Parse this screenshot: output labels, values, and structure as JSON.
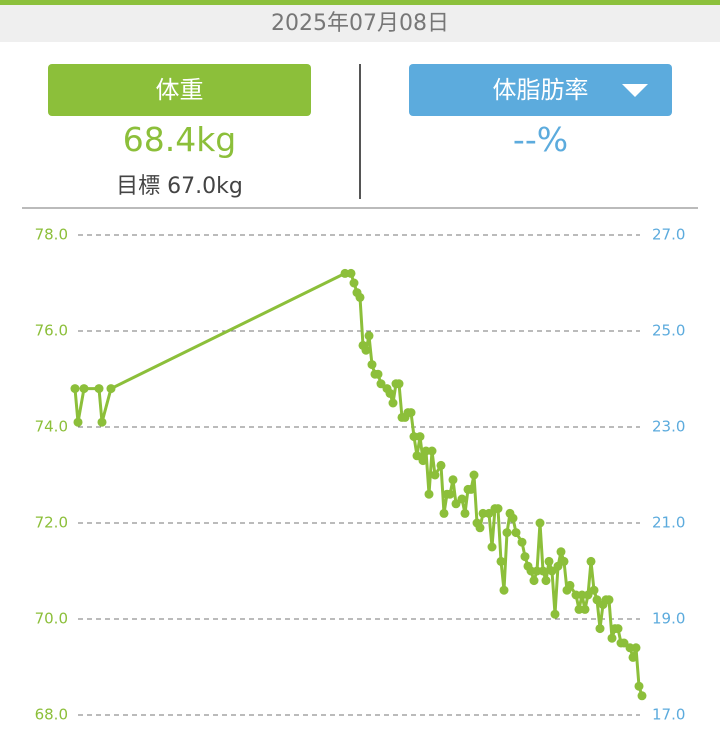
{
  "header": {
    "date": "2025年07月08日"
  },
  "weight_panel": {
    "button": "体重",
    "value": "68.4kg",
    "goal": "目標 67.0kg"
  },
  "fat_panel": {
    "button": "体脂肪率",
    "value": "--%"
  },
  "chart_data": {
    "type": "line",
    "x": [
      0,
      1,
      3,
      8,
      9,
      12,
      90,
      92,
      93,
      94,
      95,
      96,
      97,
      98,
      99,
      100,
      101,
      102,
      104,
      105,
      106,
      107,
      108,
      109,
      110,
      111,
      112,
      113,
      114,
      115,
      116,
      117,
      118,
      119,
      120,
      122,
      123,
      124,
      125,
      126,
      127,
      129,
      130,
      131,
      132,
      133,
      134,
      135,
      136,
      138,
      139,
      140,
      141,
      142,
      143,
      144,
      145,
      146,
      147,
      149,
      150,
      151,
      152,
      153,
      154,
      155,
      156,
      157,
      158,
      159,
      160,
      161,
      162,
      163,
      164,
      165,
      167,
      168,
      169,
      170,
      171,
      172,
      173,
      174,
      175,
      176,
      177,
      178,
      179,
      180,
      181,
      182,
      183,
      185,
      186,
      187,
      188,
      189
    ],
    "series": [
      {
        "name": "体重",
        "color": "#8cbf3a",
        "values": [
          74.8,
          74.1,
          74.8,
          74.8,
          74.1,
          74.8,
          77.2,
          77.2,
          77.0,
          76.8,
          76.7,
          75.7,
          75.6,
          75.9,
          75.3,
          75.1,
          75.1,
          74.9,
          74.8,
          74.7,
          74.5,
          74.9,
          74.9,
          74.2,
          74.2,
          74.3,
          74.3,
          73.8,
          73.4,
          73.8,
          73.3,
          73.5,
          72.6,
          73.5,
          73.0,
          73.2,
          72.2,
          72.6,
          72.6,
          72.9,
          72.4,
          72.5,
          72.2,
          72.7,
          72.7,
          73.0,
          72.0,
          71.9,
          72.2,
          72.2,
          71.5,
          72.3,
          72.3,
          71.2,
          70.6,
          71.8,
          72.2,
          72.1,
          71.8,
          71.6,
          71.3,
          71.1,
          71.0,
          70.8,
          71.0,
          72.0,
          71.0,
          70.8,
          71.2,
          71.0,
          70.1,
          71.1,
          71.4,
          71.2,
          70.6,
          70.7,
          70.5,
          70.2,
          70.5,
          70.2,
          70.5,
          71.2,
          70.6,
          70.4,
          69.8,
          70.3,
          70.4,
          70.4,
          69.6,
          69.8,
          69.8,
          69.5,
          69.5,
          69.4,
          69.2,
          69.4,
          68.6,
          68.4
        ]
      }
    ],
    "xlim": [
      0,
      190
    ],
    "ylim": [
      68,
      78
    ],
    "yticks": [
      {
        "value": 68,
        "label": "68.0"
      },
      {
        "value": 70,
        "label": "70.0"
      },
      {
        "value": 72,
        "label": "72.0"
      },
      {
        "value": 74,
        "label": "74.0"
      },
      {
        "value": 76,
        "label": "76.0"
      },
      {
        "value": 78,
        "label": "78.0"
      }
    ],
    "y2lim": [
      17,
      27
    ],
    "y2ticks": [
      {
        "value": 17,
        "label": "17.0"
      },
      {
        "value": 19,
        "label": "19.0"
      },
      {
        "value": 21,
        "label": "21.0"
      },
      {
        "value": 23,
        "label": "23.0"
      },
      {
        "value": 25,
        "label": "25.0"
      },
      {
        "value": 27,
        "label": "27.0"
      }
    ],
    "y2color": "#5cabdd",
    "grid": true
  }
}
